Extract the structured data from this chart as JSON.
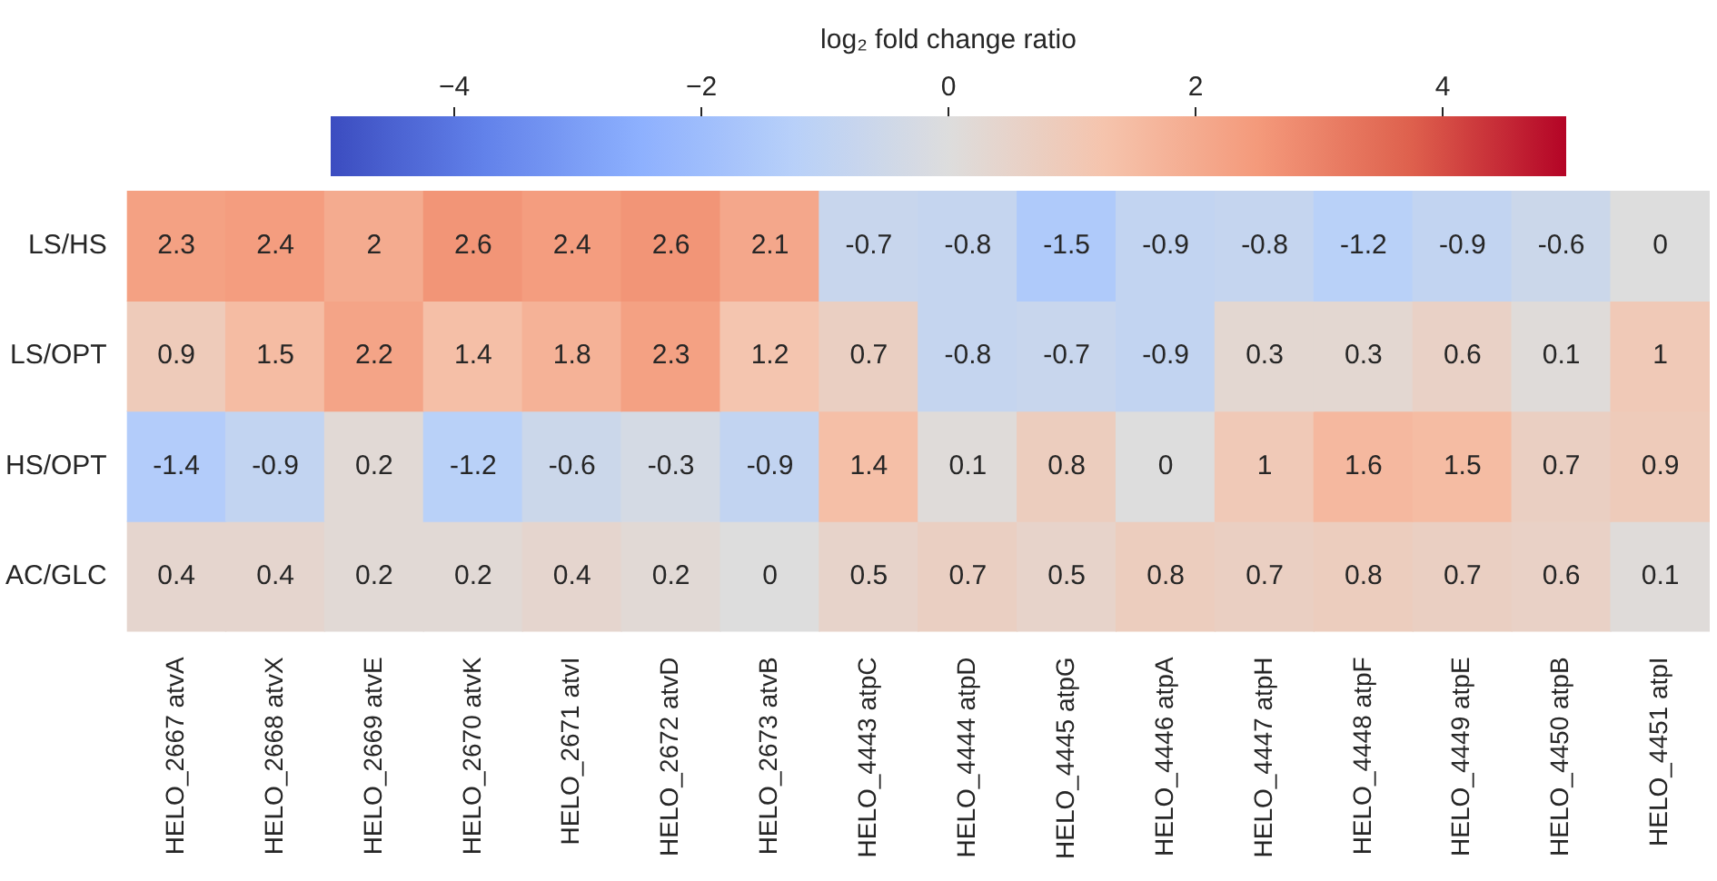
{
  "chart_data": {
    "type": "heatmap",
    "clabel": "log₂ fold change ratio",
    "categories": [
      "HELO_2667 atvA",
      "HELO_2668 atvX",
      "HELO_2669 atvE",
      "HELO_2670 atvK",
      "HELO_2671 atvI",
      "HELO_2672 atvD",
      "HELO_2673 atvB",
      "HELO_4443 atpC",
      "HELO_4444 atpD",
      "HELO_4445 atpG",
      "HELO_4446 atpA",
      "HELO_4447 atpH",
      "HELO_4448 atpF",
      "HELO_4449 atpE",
      "HELO_4450 atpB",
      "HELO_4451 atpI"
    ],
    "y_categories": [
      "LS/HS",
      "LS/OPT",
      "HS/OPT",
      "AC/GLC"
    ],
    "cells": [
      [
        2.3,
        2.4,
        2,
        2.6,
        2.4,
        2.6,
        2.1,
        -0.7,
        -0.8,
        -1.5,
        -0.9,
        -0.8,
        -1.2,
        -0.9,
        -0.6,
        0
      ],
      [
        0.9,
        1.5,
        2.2,
        1.4,
        1.8,
        2.3,
        1.2,
        0.7,
        -0.8,
        -0.7,
        -0.9,
        0.3,
        0.3,
        0.6,
        0.1,
        1
      ],
      [
        -1.4,
        -0.9,
        0.2,
        -1.2,
        -0.6,
        -0.3,
        -0.9,
        1.4,
        0.1,
        0.8,
        0,
        1,
        1.6,
        1.5,
        0.7,
        0.9
      ],
      [
        0.4,
        0.4,
        0.2,
        0.2,
        0.4,
        0.2,
        0,
        0.5,
        0.7,
        0.5,
        0.8,
        0.7,
        0.8,
        0.7,
        0.6,
        0.1
      ]
    ],
    "clim": [
      -5,
      5
    ],
    "cticks": [
      {
        "value": -4,
        "label": "−4"
      },
      {
        "value": -2,
        "label": "−2"
      },
      0,
      2,
      4
    ],
    "data_labels": true
  }
}
